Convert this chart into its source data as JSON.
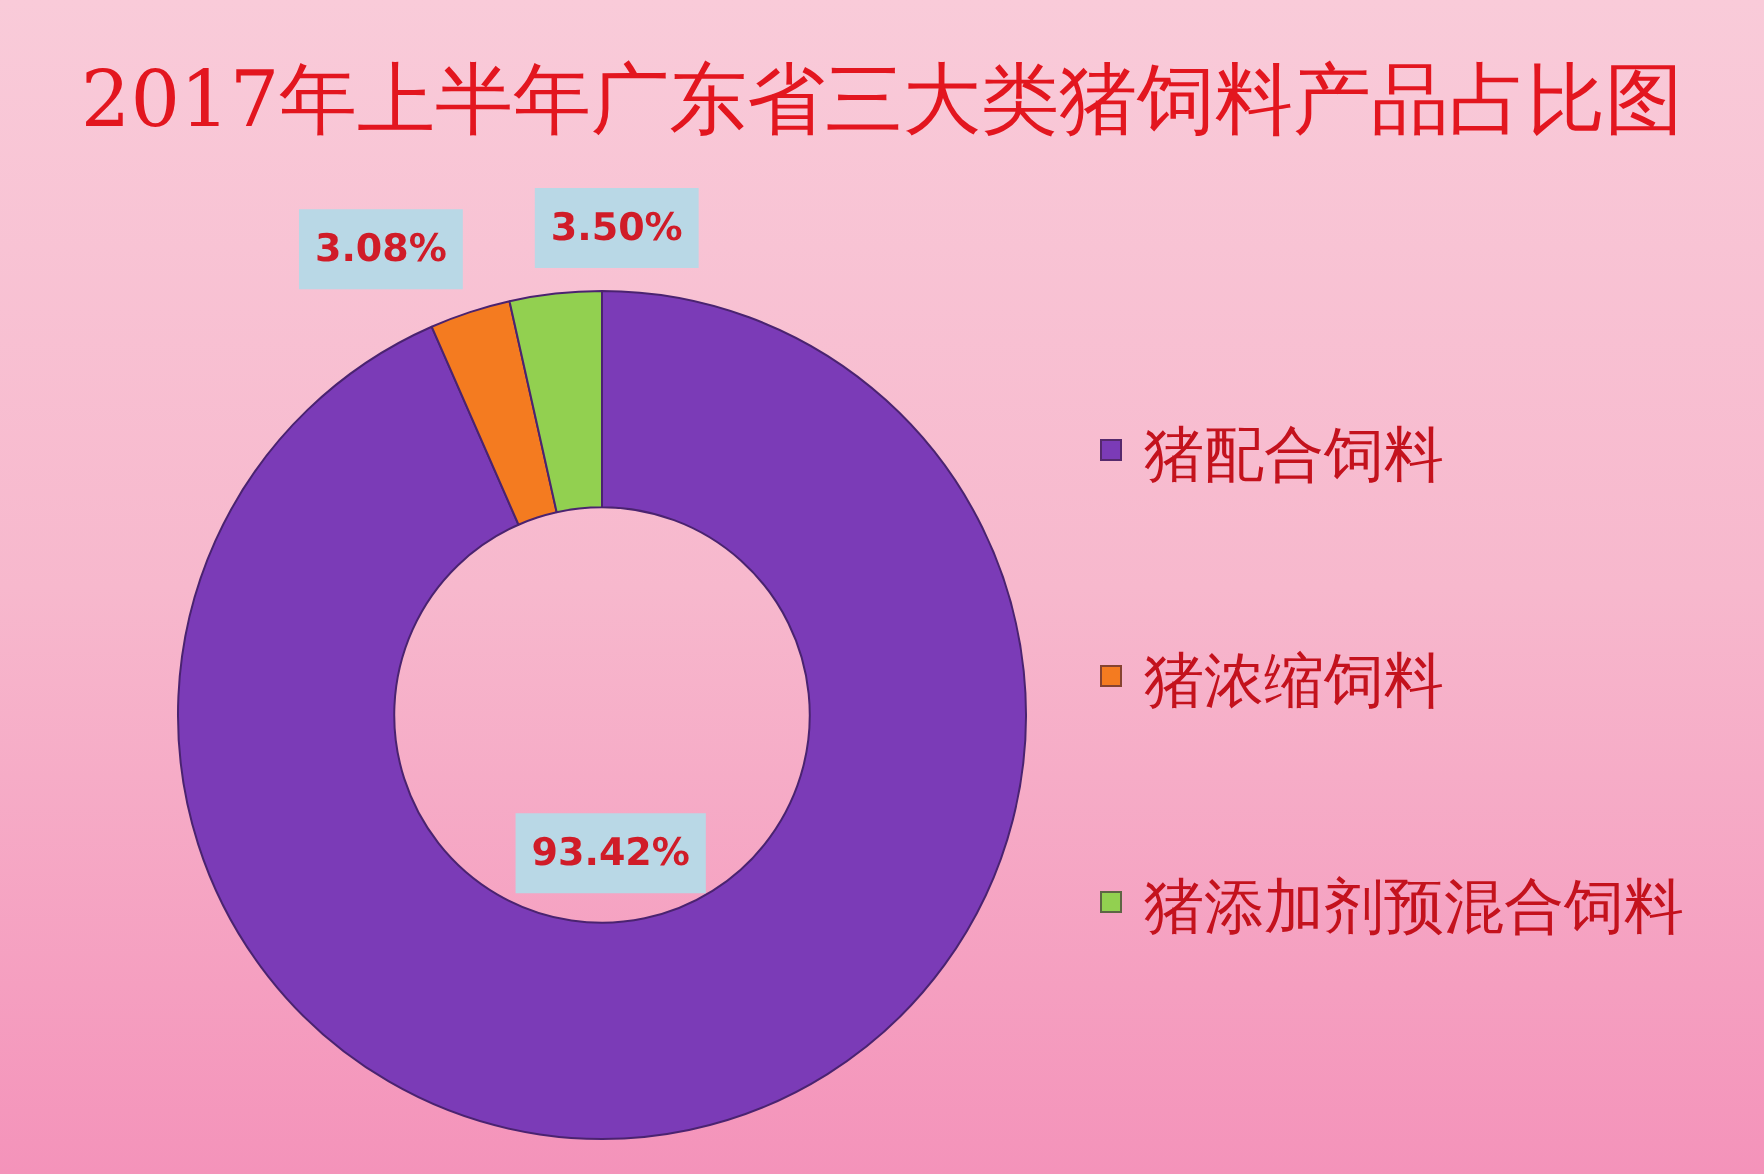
{
  "chart_data": {
    "type": "donut",
    "title": "2017年上半年广东省三大类猪饲料产品占比图",
    "categories": [
      "猪配合饲料",
      "猪浓缩饲料",
      "猪添加剂预混合饲料"
    ],
    "values": [
      93.42,
      3.08,
      3.5
    ],
    "colors": [
      "#7b3bb7",
      "#f47b20",
      "#92d050"
    ],
    "value_labels": [
      "93.42%",
      "3.08%",
      "3.50%"
    ],
    "legend": "right"
  }
}
